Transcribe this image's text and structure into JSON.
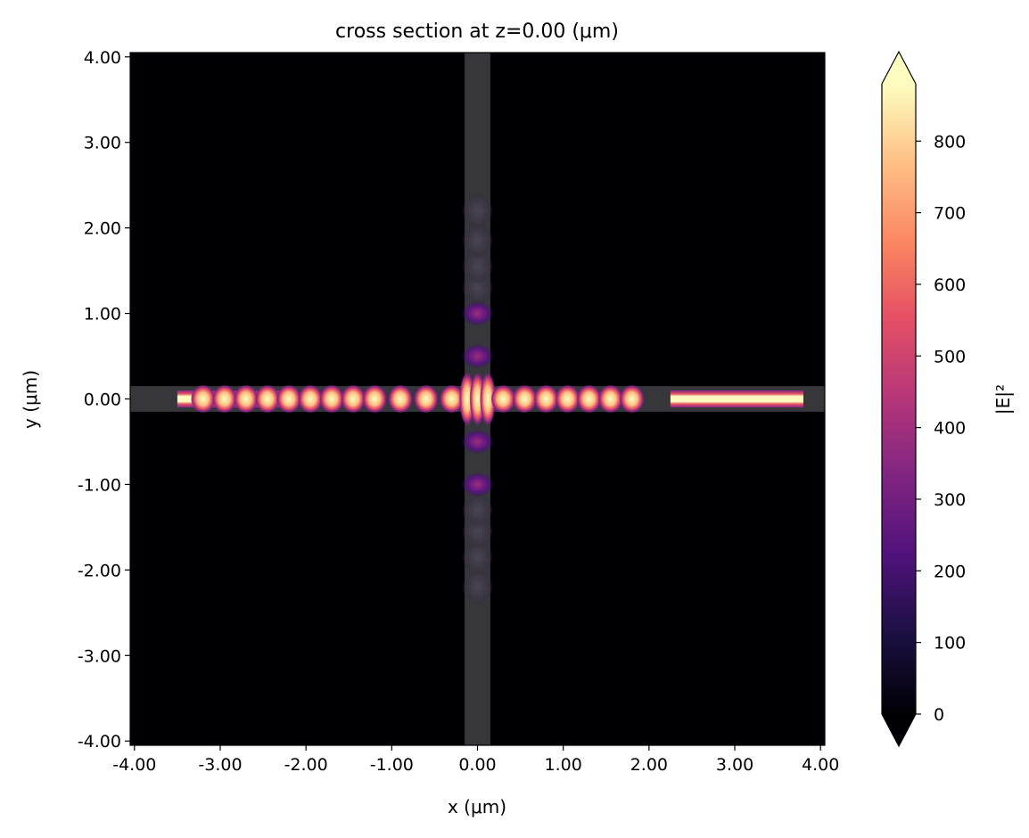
{
  "chart_data": {
    "type": "heatmap",
    "title": "cross section at z=0.00 (μm)",
    "xlabel": "x (μm)",
    "ylabel": "y (μm)",
    "xlim": [
      -4.05,
      4.05
    ],
    "ylim": [
      -4.05,
      4.05
    ],
    "xticks": [
      -4,
      -3,
      -2,
      -1,
      0,
      1,
      2,
      3,
      4
    ],
    "xtick_labels": [
      "-4.00",
      "-3.00",
      "-2.00",
      "-1.00",
      "0.00",
      "1.00",
      "2.00",
      "3.00",
      "4.00"
    ],
    "yticks": [
      -4,
      -3,
      -2,
      -1,
      0,
      1,
      2,
      3,
      4
    ],
    "ytick_labels": [
      "-4.00",
      "-3.00",
      "-2.00",
      "-1.00",
      "0.00",
      "1.00",
      "2.00",
      "3.00",
      "4.00"
    ],
    "colormap": "magma",
    "colorbar": {
      "label": "|E|²",
      "range": [
        0,
        880
      ],
      "ticks": [
        0,
        100,
        200,
        300,
        400,
        500,
        600,
        700,
        800
      ],
      "tick_labels": [
        "0",
        "100",
        "200",
        "300",
        "400",
        "500",
        "600",
        "700",
        "800"
      ],
      "extend": "both"
    },
    "structures": [
      {
        "name": "horizontal waveguide",
        "x": [
          -4.05,
          4.05
        ],
        "y": [
          -0.15,
          0.15
        ]
      },
      {
        "name": "vertical waveguide",
        "x": [
          -0.15,
          0.15
        ],
        "y": [
          -4.05,
          4.05
        ]
      }
    ],
    "field_peaks": {
      "horizontal_x": [
        -3.2,
        -2.95,
        -2.7,
        -2.45,
        -2.2,
        -1.95,
        -1.7,
        -1.45,
        -1.2,
        -0.9,
        -0.6,
        -0.3,
        -0.12,
        0.0,
        0.12,
        0.3,
        0.55,
        0.8,
        1.05,
        1.3,
        1.55,
        1.8
      ],
      "vertical_y_bright": [
        -0.5,
        0.5,
        -1.0,
        1.0
      ],
      "vertical_y_dim": [
        -2.2,
        -1.85,
        -1.55,
        -1.3,
        1.3,
        1.55,
        1.85,
        2.2
      ]
    },
    "uniform_band": {
      "x": [
        -3.5,
        -2.25
      ],
      "value": 880
    },
    "uniform_band_right": {
      "x": [
        2.25,
        3.8
      ],
      "value": 880
    }
  }
}
